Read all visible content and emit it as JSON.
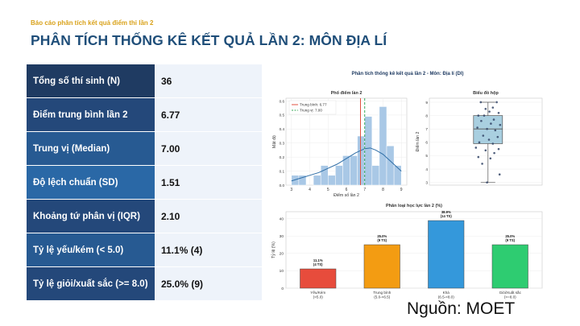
{
  "header": {
    "subtitle": "Báo cáo phân tích kết quả điểm thi lần 2",
    "title": "PHÂN TÍCH THỐNG KÊ KẾT QUẢ LẦN 2: MÔN ĐỊA LÍ"
  },
  "stats": [
    {
      "label": "Tổng số thí sinh (N)",
      "value": "36",
      "color": "#1f3b62"
    },
    {
      "label": "Điểm trung bình lần 2",
      "value": "6.77",
      "color": "#24487a"
    },
    {
      "label": "Trung vị (Median)",
      "value": "7.00",
      "color": "#275a92"
    },
    {
      "label": "Độ lệch chuẩn (SD)",
      "value": "1.51",
      "color": "#2a68a6"
    },
    {
      "label": "Khoảng tứ phân vị (IQR)",
      "value": "2.10",
      "color": "#24487a"
    },
    {
      "label": "Tỷ lệ yếu/kém (< 5.0)",
      "value": "11.1% (4)",
      "color": "#275a92"
    },
    {
      "label": "Tỷ lệ giỏi/xuất sắc (>= 8.0)",
      "value": "25.0% (9)",
      "color": "#24487a"
    }
  ],
  "figure": {
    "suptitle": "Phân tích thống kê kết quả lần 2 - Môn: Địa lí (Dl)"
  },
  "chart_data": [
    {
      "type": "bar",
      "title": "Phổ điểm lần 2",
      "xlabel": "Điểm số lần 2",
      "ylabel": "Mật độ",
      "xlim": [
        2.7,
        9.3
      ],
      "ylim": [
        0,
        0.62
      ],
      "xticks": [
        3,
        4,
        5,
        6,
        7,
        8,
        9
      ],
      "yticks": [
        0.0,
        0.1,
        0.2,
        0.3,
        0.4,
        0.5,
        0.6
      ],
      "bins": [
        {
          "x0": 3.0,
          "x1": 3.4,
          "y": 0.07
        },
        {
          "x0": 3.4,
          "x1": 3.8,
          "y": 0.07
        },
        {
          "x0": 3.8,
          "x1": 4.2,
          "y": 0.0
        },
        {
          "x0": 4.2,
          "x1": 4.6,
          "y": 0.07
        },
        {
          "x0": 4.6,
          "x1": 5.0,
          "y": 0.14
        },
        {
          "x0": 5.0,
          "x1": 5.4,
          "y": 0.07
        },
        {
          "x0": 5.4,
          "x1": 5.8,
          "y": 0.14
        },
        {
          "x0": 5.8,
          "x1": 6.2,
          "y": 0.21
        },
        {
          "x0": 6.2,
          "x1": 6.6,
          "y": 0.21
        },
        {
          "x0": 6.6,
          "x1": 7.0,
          "y": 0.35
        },
        {
          "x0": 7.0,
          "x1": 7.4,
          "y": 0.49
        },
        {
          "x0": 7.4,
          "x1": 7.8,
          "y": 0.14
        },
        {
          "x0": 7.8,
          "x1": 8.2,
          "y": 0.56
        },
        {
          "x0": 8.2,
          "x1": 8.6,
          "y": 0.28
        },
        {
          "x0": 8.6,
          "x1": 9.0,
          "y": 0.14
        }
      ],
      "kde": [
        [
          3.0,
          0.03
        ],
        [
          3.5,
          0.05
        ],
        [
          4.0,
          0.07
        ],
        [
          4.5,
          0.09
        ],
        [
          5.0,
          0.12
        ],
        [
          5.5,
          0.15
        ],
        [
          6.0,
          0.19
        ],
        [
          6.5,
          0.23
        ],
        [
          7.0,
          0.26
        ],
        [
          7.3,
          0.265
        ],
        [
          7.6,
          0.25
        ],
        [
          8.0,
          0.22
        ],
        [
          8.5,
          0.16
        ],
        [
          9.0,
          0.1
        ]
      ],
      "mean": 6.77,
      "median": 7.0,
      "legend": [
        "Trung bình: 6.77",
        "Trung vị: 7.00"
      ],
      "legend_position": "top-left",
      "colors": {
        "bar": "#a9c8e6",
        "kde": "#2f6ea6",
        "mean": "#e05040",
        "median": "#3aaa5a"
      }
    },
    {
      "type": "scatter",
      "title": "Biểu đồ hộp",
      "ylabel": "Điểm lần 2",
      "ylim": [
        2.8,
        9.3
      ],
      "yticks": [
        3,
        4,
        5,
        6,
        7,
        8,
        9
      ],
      "box": {
        "q1": 5.9,
        "median": 7.0,
        "q3": 8.0,
        "whisker_low": 3.0,
        "whisker_high": 9.0
      },
      "points": [
        [
          -0.15,
          9.0
        ],
        [
          0.18,
          9.0
        ],
        [
          -0.05,
          8.5
        ],
        [
          0.1,
          8.6
        ],
        [
          0.22,
          8.2
        ],
        [
          -0.2,
          8.0
        ],
        [
          -0.08,
          8.0
        ],
        [
          0.03,
          8.3
        ],
        [
          0.12,
          7.7
        ],
        [
          -0.14,
          7.6
        ],
        [
          0.25,
          7.3
        ],
        [
          0.06,
          7.4
        ],
        [
          -0.22,
          7.1
        ],
        [
          -0.02,
          7.0
        ],
        [
          0.15,
          6.9
        ],
        [
          -0.1,
          6.5
        ],
        [
          0.2,
          6.4
        ],
        [
          0.02,
          6.2
        ],
        [
          -0.18,
          6.0
        ],
        [
          0.1,
          5.9
        ],
        [
          -0.25,
          5.6
        ],
        [
          0.22,
          5.5
        ],
        [
          -0.05,
          5.4
        ],
        [
          0.13,
          5.2
        ],
        [
          -0.2,
          4.9
        ],
        [
          0.05,
          4.8
        ],
        [
          -0.12,
          4.4
        ],
        [
          0.24,
          3.6
        ],
        [
          -0.02,
          3.0
        ]
      ],
      "colors": {
        "box": "#a9cfe0",
        "point": "#334466"
      }
    },
    {
      "type": "bar",
      "title": "Phân loại học lực lần 2 (%)",
      "ylabel": "Tỷ lệ (%)",
      "ylim": [
        0,
        44
      ],
      "yticks": [
        0,
        10,
        20,
        30,
        40
      ],
      "categories": [
        "Yếu/Kém\n(<5.0)",
        "Trung bình\n(5.0-<6.5)",
        "Khá\n(6.5-<8.0)",
        "Giỏi/Xuất sắc\n(>=8.0)"
      ],
      "values": [
        11.1,
        25.0,
        38.9,
        25.0
      ],
      "value_labels": [
        "11.1%\n(4 TS)",
        "25.0%\n(9 TS)",
        "38.9%\n(14 TS)",
        "25.0%\n(9 TS)"
      ],
      "colors": [
        "#e74c3c",
        "#f39c12",
        "#3498db",
        "#2ecc71"
      ]
    }
  ],
  "footer": {
    "source": "Nguồn: MOET"
  }
}
